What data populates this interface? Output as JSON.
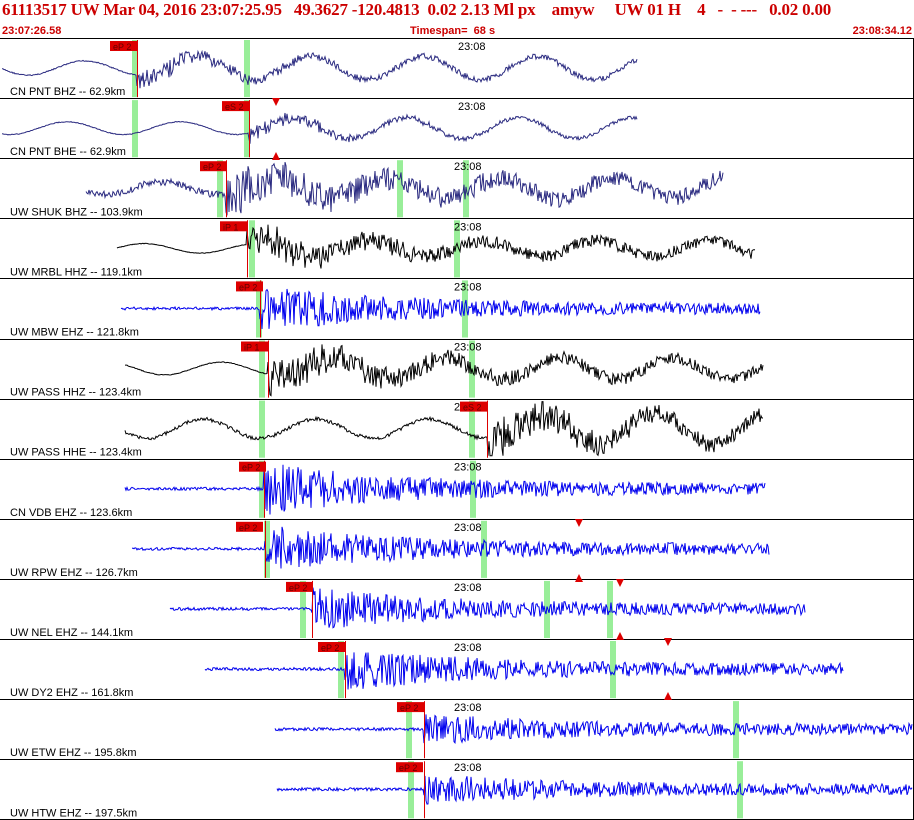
{
  "header": {
    "title": "61113517 UW Mar 04, 2016 23:07:25.95   49.3627 -120.4813  0.02 2.13 Ml px    amyw     UW 01 H    4   -  - ---   0.02 0.00",
    "start_time": "23:07:26.58",
    "timespan": "Timespan=  68 s",
    "end_time": "23:08:34.12"
  },
  "time_mark": "23:08",
  "colors": {
    "dark_trace": "#2a2a80",
    "black_trace": "#000000",
    "blue_trace": "#0000ee",
    "pick_box": "#dd0000",
    "pick_line": "#dd0000",
    "green_marker": "#99ee99",
    "grid": "#000000"
  },
  "traces": [
    {
      "label": "CN PNT BHZ -- 62.9km",
      "pick": "eP 2",
      "color": "dark"
    },
    {
      "label": "CN PNT BHE -- 62.9km",
      "pick": "eS 2",
      "color": "dark"
    },
    {
      "label": "UW SHUK BHZ -- 103.9km",
      "pick": "eP 2",
      "color": "dark"
    },
    {
      "label": "UW MRBL HHZ -- 119.1km",
      "pick": "iP 1",
      "color": "black"
    },
    {
      "label": "UW MBW EHZ -- 121.8km",
      "pick": "eP 2",
      "color": "blue"
    },
    {
      "label": "UW PASS HHZ -- 123.4km",
      "pick": "iP 1",
      "color": "black"
    },
    {
      "label": "UW PASS HHE -- 123.4km",
      "pick": "eS 2",
      "color": "black"
    },
    {
      "label": "CN VDB EHZ -- 123.6km",
      "pick": "eP 2",
      "color": "blue"
    },
    {
      "label": "UW RPW EHZ -- 126.7km",
      "pick": "eP 2",
      "color": "blue"
    },
    {
      "label": "UW NEL EHZ -- 144.1km",
      "pick": "eP 2",
      "color": "blue"
    },
    {
      "label": "UW DY2 EHZ -- 161.8km",
      "pick": "eP 2",
      "color": "blue"
    },
    {
      "label": "UW ETW EHZ -- 195.8km",
      "pick": "eP 2",
      "color": "blue"
    },
    {
      "label": "UW HTW EHZ -- 197.5km",
      "pick": "eP 2",
      "color": "blue"
    }
  ]
}
